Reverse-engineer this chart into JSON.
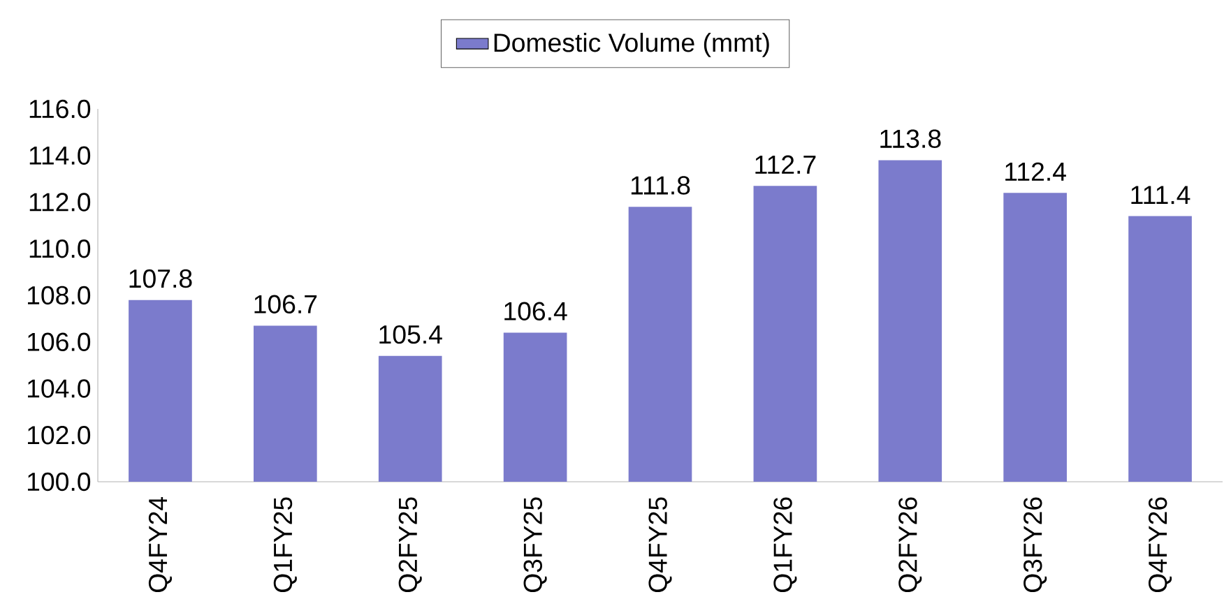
{
  "chart_data": {
    "type": "bar",
    "categories": [
      "Q4FY24",
      "Q1FY25",
      "Q2FY25",
      "Q3FY25",
      "Q4FY25",
      "Q1FY26",
      "Q2FY26",
      "Q3FY26",
      "Q4FY26"
    ],
    "series": [
      {
        "name": "Domestic Volume (mmt)",
        "color": "#7b7bcc",
        "values": [
          107.8,
          106.7,
          105.4,
          106.4,
          111.8,
          112.7,
          113.8,
          112.4,
          111.4
        ]
      }
    ],
    "ylim": [
      100,
      116
    ],
    "yticks": [
      {
        "value": 100,
        "label": "100.0"
      },
      {
        "value": 102,
        "label": "102.0"
      },
      {
        "value": 104,
        "label": "104.0"
      },
      {
        "value": 106,
        "label": "106.0"
      },
      {
        "value": 108,
        "label": "108.0"
      },
      {
        "value": 110,
        "label": "110.0"
      },
      {
        "value": 112,
        "label": "112.0"
      },
      {
        "value": 114,
        "label": "114.0"
      },
      {
        "value": 116,
        "label": "116.0"
      }
    ],
    "data_labels": true,
    "grid": false,
    "legend": "top"
  }
}
